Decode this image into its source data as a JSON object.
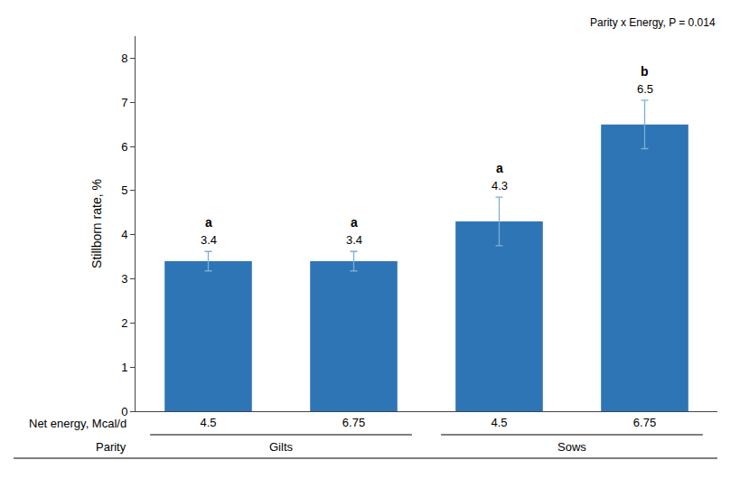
{
  "chart_data": {
    "type": "bar",
    "categories": [
      "4.5",
      "6.75",
      "4.5",
      "6.75"
    ],
    "xlabel": "Net energy, Mcal/d",
    "groups": [
      "Gilts",
      "Gilts",
      "Sows",
      "Sows"
    ],
    "group_label": "Parity",
    "values": [
      3.4,
      3.4,
      4.3,
      6.5
    ],
    "errors": [
      0.22,
      0.22,
      0.55,
      0.55
    ],
    "color": "#2E75B6",
    "error_color": "#7bafd4",
    "data_labels": true,
    "superscripts": [
      "a",
      "a",
      "a",
      "b"
    ],
    "annotation": "Parity x Energy, P = 0.014",
    "ylabel": "Stillborn rate, %",
    "ylim": [
      0,
      8.5
    ],
    "yticks": [
      0,
      1,
      2,
      3,
      4,
      5,
      6,
      7,
      8
    ],
    "grid": false
  }
}
